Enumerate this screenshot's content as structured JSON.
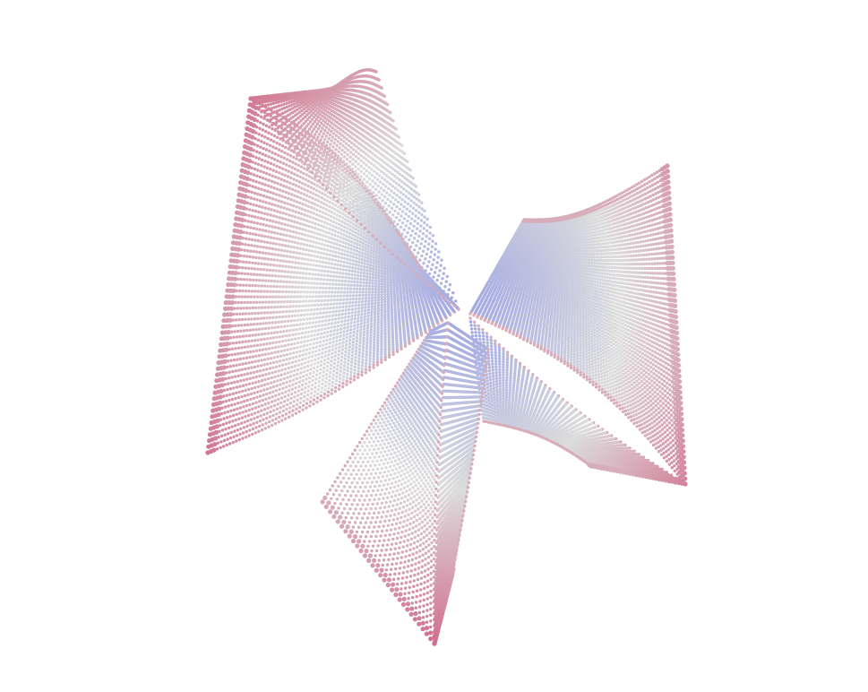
{
  "scene": {
    "background_color": "#ffffff",
    "subject": "3d-point-cloud-twisted-surface",
    "colormap": {
      "name": "coolwarm",
      "low_color": "#7b86e6",
      "mid_color": "#dcdcdc",
      "high_color": "#c8194f"
    },
    "marker_shape": "sphere",
    "axes_visible": false,
    "grid_visible": false,
    "legend_visible": false,
    "colorbar_visible": false
  }
}
